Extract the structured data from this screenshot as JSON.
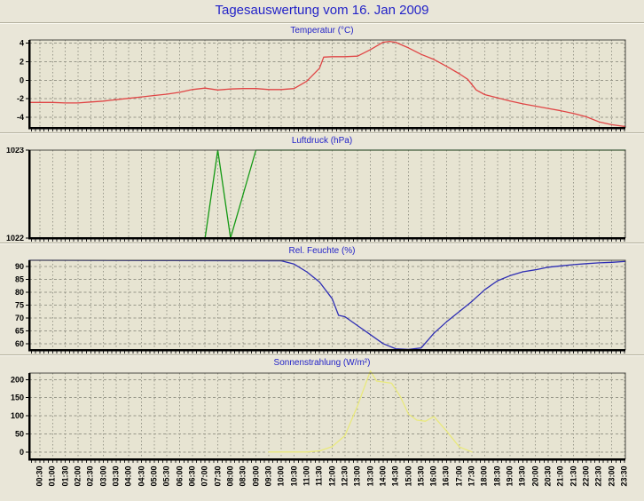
{
  "page": {
    "title": "Tagesauswertung vom 16. Jan 2009",
    "title_color": "#2323c8",
    "background": "#e9e6d8",
    "plot_bg": "#e7e4d2",
    "grid_color": "#98988a",
    "axis_color": "#000000",
    "frame_color": "#4a4a44"
  },
  "x_axis": {
    "labels": [
      "00:30",
      "01:00",
      "01:30",
      "02:00",
      "02:30",
      "03:00",
      "03:30",
      "04:00",
      "04:30",
      "05:00",
      "05:30",
      "06:00",
      "06:30",
      "07:00",
      "07:30",
      "08:00",
      "08:30",
      "09:00",
      "09:30",
      "10:00",
      "10:30",
      "11:00",
      "11:30",
      "12:00",
      "12:30",
      "13:00",
      "13:30",
      "14:00",
      "14:30",
      "15:00",
      "15:30",
      "16:00",
      "16:30",
      "17:00",
      "17:30",
      "18:00",
      "18:30",
      "19:00",
      "19:30",
      "20:00",
      "20:30",
      "21:00",
      "21:30",
      "22:00",
      "22:30",
      "23:00",
      "23:30"
    ],
    "tick_every_min": 30,
    "minor_tick_min": 10
  },
  "chart_data": [
    {
      "type": "line",
      "title": "Temperatur (°C)",
      "color": "#e04545",
      "ylim": [
        -5.15,
        4.35
      ],
      "yticks": [
        4,
        2,
        0,
        -2,
        -4
      ],
      "extend_to_edges": true,
      "points": [
        [
          "00:30",
          -2.4
        ],
        [
          "01:00",
          -2.4
        ],
        [
          "01:30",
          -2.45
        ],
        [
          "02:00",
          -2.45
        ],
        [
          "02:30",
          -2.35
        ],
        [
          "03:00",
          -2.25
        ],
        [
          "03:30",
          -2.1
        ],
        [
          "04:00",
          -1.95
        ],
        [
          "04:30",
          -1.8
        ],
        [
          "05:00",
          -1.65
        ],
        [
          "05:30",
          -1.5
        ],
        [
          "06:00",
          -1.3
        ],
        [
          "06:30",
          -1.0
        ],
        [
          "07:00",
          -0.85
        ],
        [
          "07:30",
          -1.05
        ],
        [
          "08:00",
          -0.95
        ],
        [
          "08:30",
          -0.9
        ],
        [
          "09:00",
          -0.9
        ],
        [
          "09:30",
          -1.0
        ],
        [
          "10:00",
          -1.0
        ],
        [
          "10:30",
          -0.9
        ],
        [
          "11:00",
          -0.1
        ],
        [
          "11:30",
          1.3
        ],
        [
          "11:40",
          2.5
        ],
        [
          "12:00",
          2.55
        ],
        [
          "12:30",
          2.55
        ],
        [
          "13:00",
          2.6
        ],
        [
          "13:30",
          3.3
        ],
        [
          "14:00",
          4.1
        ],
        [
          "14:15",
          4.2
        ],
        [
          "14:30",
          4.1
        ],
        [
          "15:00",
          3.5
        ],
        [
          "15:30",
          2.8
        ],
        [
          "16:00",
          2.25
        ],
        [
          "16:30",
          1.5
        ],
        [
          "17:00",
          0.7
        ],
        [
          "17:20",
          0.1
        ],
        [
          "17:40",
          -1.05
        ],
        [
          "18:00",
          -1.55
        ],
        [
          "18:30",
          -1.9
        ],
        [
          "19:00",
          -2.25
        ],
        [
          "19:30",
          -2.55
        ],
        [
          "20:00",
          -2.8
        ],
        [
          "20:30",
          -3.05
        ],
        [
          "21:00",
          -3.3
        ],
        [
          "21:30",
          -3.6
        ],
        [
          "22:00",
          -3.95
        ],
        [
          "22:30",
          -4.5
        ],
        [
          "23:00",
          -4.8
        ],
        [
          "23:30",
          -5.0
        ]
      ]
    },
    {
      "type": "line",
      "title": "Luftdruck (hPa)",
      "color": "#149914",
      "ylim": [
        1022,
        1023
      ],
      "yticks": [
        1023,
        1022
      ],
      "extend_to_edges": true,
      "points": [
        [
          "00:30",
          1022
        ],
        [
          "07:00",
          1022
        ],
        [
          "07:30",
          1023
        ],
        [
          "08:00",
          1022
        ],
        [
          "08:30",
          1022.5
        ],
        [
          "09:00",
          1023
        ],
        [
          "23:30",
          1023
        ]
      ]
    },
    {
      "type": "line",
      "title": "Rel. Feuchte (%)",
      "color": "#2d2db4",
      "ylim": [
        57.5,
        92.5
      ],
      "yticks": [
        90,
        85,
        80,
        75,
        70,
        65,
        60
      ],
      "extend_to_edges": true,
      "points": [
        [
          "00:30",
          92.5
        ],
        [
          "10:00",
          92.3
        ],
        [
          "10:30",
          91
        ],
        [
          "11:00",
          88
        ],
        [
          "11:30",
          84
        ],
        [
          "12:00",
          77.5
        ],
        [
          "12:15",
          71
        ],
        [
          "12:30",
          70.5
        ],
        [
          "13:00",
          67
        ],
        [
          "13:30",
          63.5
        ],
        [
          "14:00",
          60
        ],
        [
          "14:30",
          58
        ],
        [
          "15:00",
          57.7
        ],
        [
          "15:30",
          58.3
        ],
        [
          "16:00",
          64
        ],
        [
          "16:30",
          68.5
        ],
        [
          "17:00",
          72.5
        ],
        [
          "17:30",
          76.5
        ],
        [
          "18:00",
          81
        ],
        [
          "18:30",
          84.5
        ],
        [
          "19:00",
          86.5
        ],
        [
          "19:30",
          88
        ],
        [
          "20:00",
          88.8
        ],
        [
          "20:30",
          89.8
        ],
        [
          "21:00",
          90.3
        ],
        [
          "21:30",
          90.8
        ],
        [
          "22:00",
          91.2
        ],
        [
          "22:30",
          91.5
        ],
        [
          "23:00",
          91.7
        ],
        [
          "23:30",
          92
        ]
      ]
    },
    {
      "type": "line",
      "title": "Sonnenstrahlung (W/m²)",
      "color": "#e9e97c",
      "ylim": [
        -20,
        218
      ],
      "yticks": [
        200,
        150,
        100,
        50,
        0
      ],
      "extend_to_edges": false,
      "points": [
        [
          "09:30",
          0
        ],
        [
          "10:00",
          0
        ],
        [
          "10:30",
          0
        ],
        [
          "11:00",
          0
        ],
        [
          "11:30",
          3
        ],
        [
          "12:00",
          15
        ],
        [
          "12:30",
          45
        ],
        [
          "13:00",
          128
        ],
        [
          "13:30",
          224
        ],
        [
          "13:45",
          196
        ],
        [
          "14:20",
          190
        ],
        [
          "14:40",
          155
        ],
        [
          "15:00",
          105
        ],
        [
          "15:20",
          88
        ],
        [
          "15:40",
          85
        ],
        [
          "16:00",
          98
        ],
        [
          "16:30",
          58
        ],
        [
          "17:00",
          14
        ],
        [
          "17:30",
          0
        ]
      ]
    }
  ]
}
